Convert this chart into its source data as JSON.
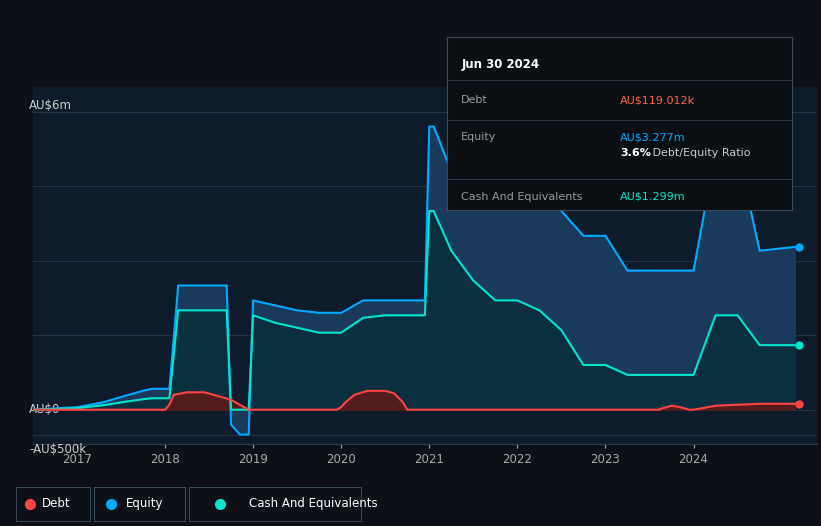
{
  "bg_color": "#0d1117",
  "plot_bg_color": "#0d1b2a",
  "equity_color": "#00aaff",
  "equity_fill": "#1a3a5c",
  "cash_color": "#00e5cc",
  "cash_fill": "#0a3040",
  "debt_color": "#ff4444",
  "debt_fill": "#5c1a1a",
  "grid_color": "#2a3a4a",
  "y_label_color": "#cccccc",
  "x_label_color": "#aaaaaa",
  "legend_border": "#3a4a5a",
  "tooltip_bg": "#0a0f14",
  "tooltip_border": "#3a4a5a",
  "ylabel_top": "AU$6m",
  "ylabel_zero": "AU$0",
  "ylabel_neg": "-AU$500k",
  "ylim": [
    -700000,
    6500000
  ],
  "xlim": [
    2016.5,
    2025.4
  ],
  "xticks": [
    2017,
    2018,
    2019,
    2020,
    2021,
    2022,
    2023,
    2024
  ],
  "equity_data_x": [
    2016.5,
    2017.0,
    2017.3,
    2017.55,
    2017.75,
    2017.85,
    2017.95,
    2018.0,
    2018.05,
    2018.15,
    2018.35,
    2018.45,
    2018.5,
    2018.55,
    2018.7,
    2018.75,
    2018.85,
    2018.95,
    2019.0,
    2019.25,
    2019.5,
    2019.75,
    2019.95,
    2020.0,
    2020.25,
    2020.5,
    2020.75,
    2020.95,
    2021.0,
    2021.05,
    2021.25,
    2021.5,
    2021.75,
    2021.95,
    2022.0,
    2022.25,
    2022.5,
    2022.75,
    2022.95,
    2023.0,
    2023.25,
    2023.5,
    2023.75,
    2023.95,
    2024.0,
    2024.25,
    2024.45,
    2024.5,
    2024.75,
    2025.15
  ],
  "equity_data_y": [
    0,
    50000,
    150000,
    280000,
    380000,
    420000,
    420000,
    420000,
    420000,
    2500000,
    2500000,
    2500000,
    2500000,
    2500000,
    2500000,
    -300000,
    -500000,
    -500000,
    2200000,
    2100000,
    2000000,
    1950000,
    1950000,
    1950000,
    2200000,
    2200000,
    2200000,
    2200000,
    5700000,
    5700000,
    4800000,
    4200000,
    4200000,
    4200000,
    4200000,
    4400000,
    4000000,
    3500000,
    3500000,
    3500000,
    2800000,
    2800000,
    2800000,
    2800000,
    2800000,
    5200000,
    5200000,
    5200000,
    3200000,
    3277000
  ],
  "cash_data_x": [
    2016.5,
    2017.0,
    2017.3,
    2017.55,
    2017.75,
    2017.85,
    2017.95,
    2018.0,
    2018.05,
    2018.15,
    2018.35,
    2018.45,
    2018.5,
    2018.55,
    2018.7,
    2018.75,
    2018.85,
    2018.95,
    2019.0,
    2019.25,
    2019.5,
    2019.75,
    2019.95,
    2020.0,
    2020.25,
    2020.5,
    2020.75,
    2020.95,
    2021.0,
    2021.05,
    2021.25,
    2021.5,
    2021.75,
    2021.95,
    2022.0,
    2022.25,
    2022.5,
    2022.75,
    2022.95,
    2023.0,
    2023.25,
    2023.5,
    2023.75,
    2023.95,
    2024.0,
    2024.25,
    2024.45,
    2024.5,
    2024.75,
    2025.15
  ],
  "cash_data_y": [
    0,
    30000,
    90000,
    160000,
    210000,
    230000,
    230000,
    230000,
    230000,
    2000000,
    2000000,
    2000000,
    2000000,
    2000000,
    2000000,
    0,
    0,
    0,
    1900000,
    1750000,
    1650000,
    1550000,
    1550000,
    1550000,
    1850000,
    1900000,
    1900000,
    1900000,
    4000000,
    4000000,
    3200000,
    2600000,
    2200000,
    2200000,
    2200000,
    2000000,
    1600000,
    900000,
    900000,
    900000,
    700000,
    700000,
    700000,
    700000,
    700000,
    1900000,
    1900000,
    1900000,
    1300000,
    1299000
  ],
  "debt_data_x": [
    2016.5,
    2017.7,
    2017.85,
    2017.95,
    2018.0,
    2018.05,
    2018.1,
    2018.25,
    2018.45,
    2018.55,
    2018.75,
    2018.95,
    2019.0,
    2019.5,
    2019.95,
    2020.0,
    2020.05,
    2020.15,
    2020.3,
    2020.5,
    2020.6,
    2020.7,
    2020.75,
    2020.95,
    2021.0,
    2022.0,
    2023.0,
    2023.6,
    2023.65,
    2023.75,
    2023.85,
    2023.95,
    2024.0,
    2024.1,
    2024.25,
    2024.5,
    2024.75,
    2025.15
  ],
  "debt_data_y": [
    0,
    0,
    0,
    0,
    0,
    100000,
    300000,
    350000,
    350000,
    300000,
    200000,
    0,
    0,
    0,
    0,
    50000,
    150000,
    300000,
    380000,
    380000,
    330000,
    150000,
    0,
    0,
    0,
    0,
    0,
    0,
    30000,
    80000,
    50000,
    0,
    0,
    30000,
    80000,
    100000,
    119012,
    119012
  ],
  "tooltip_title": "Jun 30 2024",
  "tooltip_rows": [
    {
      "label": "Debt",
      "value": "AU$119.012k",
      "value_color": "#ff6644"
    },
    {
      "label": "Equity",
      "value": "AU$3.277m",
      "value_color": "#00aaff"
    },
    {
      "label": "",
      "bold": "3.6%",
      "rest": " Debt/Equity Ratio"
    },
    {
      "label": "Cash And Equivalents",
      "value": "AU$1.299m",
      "value_color": "#00e5cc"
    }
  ],
  "legend_items": [
    {
      "label": "Debt",
      "color": "#ff4444"
    },
    {
      "label": "Equity",
      "color": "#00aaff"
    },
    {
      "label": "Cash And Equivalents",
      "color": "#00e5cc"
    }
  ]
}
